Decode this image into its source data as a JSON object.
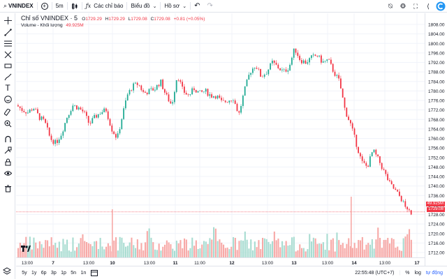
{
  "toolbar": {
    "symbol": "VNINDEX",
    "interval": "5m",
    "indicators_label": "Các chỉ báo",
    "chart_label": "Biểu đồ",
    "profile_label": "Hồ sơ"
  },
  "legend": {
    "title": "Chỉ số VNINDEX · 5",
    "o_label": "O",
    "o_value": "1729.29",
    "h_label": "H",
    "h_value": "1729.29",
    "l_label": "L",
    "l_value": "1729.08",
    "c_label": "C",
    "c_value": "1729.08",
    "change": "+0.81 (+0.05%)",
    "volume_label": "Volume - Khối lượng",
    "volume_value": "49.925M"
  },
  "price_tags": {
    "volume_tag": "49.925M",
    "price_tag": "1729.08"
  },
  "left_tools": [
    "crosshair-icon",
    "trend-line-icon",
    "fib-icon",
    "pattern-icon",
    "measure-icon",
    "brush-icon",
    "text-icon",
    "emoji-icon",
    "ruler-icon",
    "zoom-icon",
    "magnet-icon",
    "lock-draw-icon",
    "lock-icon",
    "eye-icon",
    "trash-icon"
  ],
  "bottom": {
    "ranges": [
      "5y",
      "1y",
      "6p",
      "3p",
      "1p",
      "5n",
      "1n"
    ],
    "time": "22:55:48 (UTC+7)",
    "percent": "%",
    "log": "log",
    "auto": "tự động"
  },
  "colors": {
    "up": "#22ab94",
    "down": "#f23645",
    "up_vol": "#a8dcd1",
    "down_vol": "#f7a9a7",
    "accent": "#2962ff"
  },
  "chart_data": {
    "type": "candlestick",
    "y_ticks": [
      1712,
      1716,
      1720,
      1724,
      1728,
      1732,
      1736,
      1740,
      1744,
      1748,
      1752,
      1756,
      1760,
      1764,
      1768,
      1772,
      1776,
      1780,
      1784,
      1788,
      1792,
      1796,
      1800,
      1804,
      1808
    ],
    "y_range": [
      1710,
      1809
    ],
    "x_labels": [
      "13:00",
      "7",
      "13:00",
      "10",
      "13:00",
      "11",
      "11:00",
      "12",
      "13:00",
      "13",
      "13:00",
      "14",
      "13:00",
      "17"
    ],
    "last_price": 1729.08,
    "volume_last": "49.925M",
    "price_path": [
      [
        0,
        1774
      ],
      [
        8,
        1772
      ],
      [
        16,
        1771
      ],
      [
        24,
        1773
      ],
      [
        32,
        1769
      ],
      [
        40,
        1767
      ],
      [
        48,
        1760
      ],
      [
        56,
        1758
      ],
      [
        64,
        1762
      ],
      [
        72,
        1769
      ],
      [
        80,
        1774
      ],
      [
        88,
        1773
      ],
      [
        96,
        1771
      ],
      [
        104,
        1766
      ],
      [
        112,
        1769
      ],
      [
        120,
        1771
      ],
      [
        128,
        1772
      ],
      [
        136,
        1764
      ],
      [
        144,
        1760
      ],
      [
        150,
        1768
      ],
      [
        158,
        1778
      ],
      [
        166,
        1782
      ],
      [
        174,
        1783
      ],
      [
        182,
        1779
      ],
      [
        190,
        1780
      ],
      [
        198,
        1781
      ],
      [
        206,
        1784
      ],
      [
        214,
        1778
      ],
      [
        222,
        1774
      ],
      [
        230,
        1787
      ],
      [
        238,
        1780
      ],
      [
        246,
        1778
      ],
      [
        254,
        1781
      ],
      [
        262,
        1779
      ],
      [
        270,
        1780
      ],
      [
        278,
        1778
      ],
      [
        286,
        1778
      ],
      [
        294,
        1775
      ],
      [
        302,
        1776
      ],
      [
        310,
        1777
      ],
      [
        318,
        1770
      ],
      [
        326,
        1780
      ],
      [
        334,
        1788
      ],
      [
        342,
        1791
      ],
      [
        350,
        1786
      ],
      [
        358,
        1788
      ],
      [
        366,
        1792
      ],
      [
        374,
        1790
      ],
      [
        382,
        1788
      ],
      [
        390,
        1790
      ],
      [
        398,
        1798
      ],
      [
        406,
        1793
      ],
      [
        414,
        1792
      ],
      [
        422,
        1794
      ],
      [
        430,
        1795
      ],
      [
        438,
        1792
      ],
      [
        446,
        1793
      ],
      [
        454,
        1788
      ],
      [
        462,
        1784
      ],
      [
        470,
        1772
      ],
      [
        478,
        1766
      ],
      [
        486,
        1758
      ],
      [
        494,
        1750
      ],
      [
        502,
        1748
      ],
      [
        510,
        1755
      ],
      [
        518,
        1751
      ],
      [
        526,
        1746
      ],
      [
        534,
        1741
      ],
      [
        542,
        1738
      ],
      [
        550,
        1735
      ],
      [
        558,
        1730
      ],
      [
        564,
        1729
      ]
    ]
  }
}
